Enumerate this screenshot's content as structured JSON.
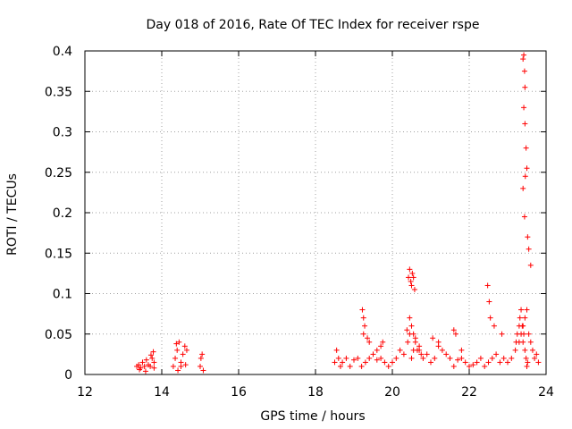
{
  "chart_data": {
    "type": "scatter",
    "title": "Day 018 of 2016, Rate Of TEC Index for receiver rspe",
    "xlabel": "GPS time / hours",
    "ylabel": "ROTI / TECUs",
    "xlim": [
      12,
      24
    ],
    "ylim": [
      0,
      0.4
    ],
    "xticks": [
      12,
      14,
      16,
      18,
      20,
      22,
      24
    ],
    "yticks": [
      0,
      0.05,
      0.1,
      0.15,
      0.2,
      0.25,
      0.3,
      0.35,
      0.4
    ],
    "xtick_labels": [
      "12",
      "14",
      "16",
      "18",
      "20",
      "22",
      "24"
    ],
    "ytick_labels": [
      "0",
      "0.05",
      "0.1",
      "0.15",
      "0.2",
      "0.25",
      "0.3",
      "0.35",
      "0.4"
    ],
    "grid": true,
    "marker": "+",
    "color": "#ff0000",
    "series": [
      {
        "name": "ROTI",
        "x": [
          13.35,
          13.4,
          13.45,
          13.5,
          13.55,
          13.6,
          13.65,
          13.7,
          13.75,
          13.8,
          13.42,
          13.58,
          13.72,
          13.78,
          13.8,
          14.3,
          14.35,
          14.4,
          14.45,
          14.5,
          14.55,
          14.6,
          14.65,
          14.42,
          14.5,
          14.62,
          14.38,
          15.0,
          15.02,
          15.05,
          15.08,
          18.5,
          18.55,
          18.6,
          18.65,
          18.7,
          18.8,
          18.9,
          19.0,
          19.1,
          19.2,
          19.25,
          19.3,
          19.4,
          19.5,
          19.6,
          19.7,
          19.8,
          19.9,
          19.22,
          19.25,
          19.28,
          19.35,
          19.4,
          19.6,
          19.7,
          19.75,
          20.0,
          20.1,
          20.2,
          20.3,
          20.4,
          20.45,
          20.5,
          20.55,
          20.6,
          20.7,
          20.8,
          20.9,
          20.42,
          20.45,
          20.48,
          20.5,
          20.52,
          20.55,
          20.58,
          20.45,
          20.5,
          20.55,
          20.6,
          20.38,
          20.65,
          20.7,
          20.75,
          21.0,
          21.1,
          21.2,
          21.3,
          21.4,
          21.5,
          21.6,
          21.7,
          21.8,
          21.9,
          21.05,
          21.2,
          21.6,
          21.65,
          21.8,
          22.0,
          22.1,
          22.2,
          22.3,
          22.4,
          22.5,
          22.6,
          22.7,
          22.8,
          22.9,
          22.48,
          22.52,
          22.55,
          22.65,
          22.85,
          23.0,
          23.1,
          23.2,
          23.3,
          23.35,
          23.4,
          23.45,
          23.5,
          23.55,
          23.6,
          23.65,
          23.7,
          23.75,
          23.8,
          23.22,
          23.25,
          23.3,
          23.32,
          23.35,
          23.38,
          23.4,
          23.42,
          23.45,
          23.48,
          23.5,
          23.52,
          23.4,
          23.42,
          23.44,
          23.45,
          23.42,
          23.45,
          23.48,
          23.5,
          23.46,
          23.4,
          23.44,
          23.52,
          23.55,
          23.6
        ],
        "y": [
          0.01,
          0.012,
          0.008,
          0.015,
          0.01,
          0.018,
          0.012,
          0.01,
          0.02,
          0.015,
          0.006,
          0.004,
          0.024,
          0.028,
          0.008,
          0.01,
          0.02,
          0.03,
          0.04,
          0.015,
          0.025,
          0.035,
          0.03,
          0.005,
          0.01,
          0.012,
          0.038,
          0.01,
          0.02,
          0.025,
          0.005,
          0.015,
          0.03,
          0.02,
          0.01,
          0.015,
          0.02,
          0.01,
          0.018,
          0.02,
          0.01,
          0.05,
          0.015,
          0.02,
          0.025,
          0.018,
          0.02,
          0.015,
          0.01,
          0.08,
          0.07,
          0.06,
          0.045,
          0.04,
          0.03,
          0.035,
          0.04,
          0.015,
          0.02,
          0.03,
          0.025,
          0.04,
          0.05,
          0.02,
          0.03,
          0.045,
          0.03,
          0.02,
          0.025,
          0.12,
          0.13,
          0.115,
          0.11,
          0.125,
          0.12,
          0.105,
          0.07,
          0.06,
          0.05,
          0.04,
          0.055,
          0.03,
          0.035,
          0.025,
          0.015,
          0.02,
          0.04,
          0.03,
          0.025,
          0.02,
          0.01,
          0.018,
          0.02,
          0.015,
          0.045,
          0.035,
          0.055,
          0.05,
          0.03,
          0.01,
          0.012,
          0.015,
          0.02,
          0.01,
          0.015,
          0.02,
          0.025,
          0.015,
          0.02,
          0.11,
          0.09,
          0.07,
          0.06,
          0.05,
          0.015,
          0.02,
          0.03,
          0.04,
          0.05,
          0.06,
          0.07,
          0.08,
          0.05,
          0.04,
          0.03,
          0.02,
          0.025,
          0.015,
          0.04,
          0.05,
          0.06,
          0.07,
          0.08,
          0.06,
          0.04,
          0.05,
          0.03,
          0.02,
          0.01,
          0.015,
          0.39,
          0.395,
          0.375,
          0.355,
          0.33,
          0.31,
          0.28,
          0.255,
          0.245,
          0.23,
          0.195,
          0.17,
          0.155,
          0.135
        ]
      }
    ]
  }
}
